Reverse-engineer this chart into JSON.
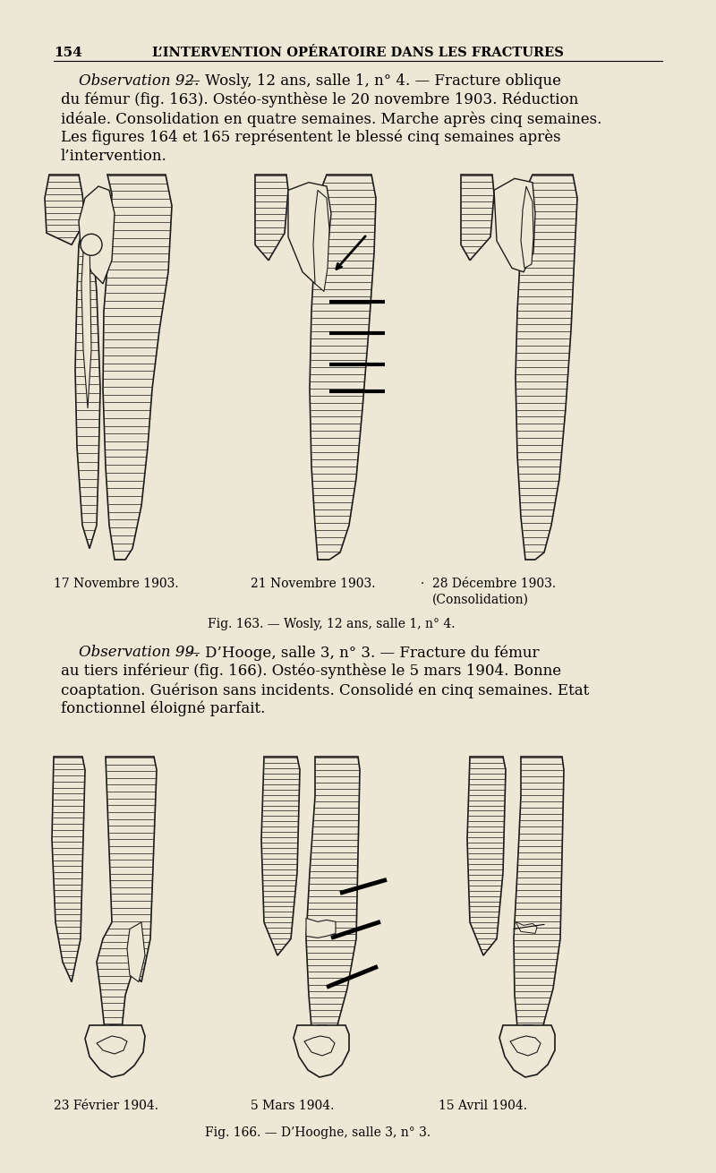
{
  "bg_color": "#ede8d5",
  "page_number": "154",
  "header_title": "L’INTERVENTION OPÉRATOIRE DANS LES FRACTURES",
  "obs92_line1_italic": "Observation 92.",
  "obs92_line1_rest": " — Wosly, 12 ans, salle 1, n° 4. — Fracture oblique",
  "obs92_lines": [
    "du fémur (fig. 163). Ostéo-synthèse le 20 novembre 1903. Réduction",
    "idéale. Consolidation en quatre semaines. Marche après cinq semaines.",
    "Les figures 164 et 165 représentent le blessé cinq semaines après",
    "l’intervention."
  ],
  "labels_fig163_1": "17 Novembre 1903.",
  "labels_fig163_2": "21 Novembre 1903.",
  "labels_fig163_3a": "28 Décembre 1903.",
  "labels_fig163_3b": "(Consolidation)",
  "labels_fig163_dot": "·",
  "caption_fig163": "Fig. 163. — Wosly, 12 ans, salle 1, n° 4.",
  "obs99_line1_italic": "Observation 99.",
  "obs99_line1_rest": " — D’Hooge, salle 3, n° 3. — Fracture du fémur",
  "obs99_lines": [
    "au tiers inférieur (fig. 166). Ostéo-synthèse le 5 mars 1904. Bonne",
    "coaptation. Guérison sans incidents. Consolidé en cinq semaines. Etat",
    "fonctionnel éloigné parfait."
  ],
  "labels_fig166_1": "23 Février 1904.",
  "labels_fig166_2": "5 Mars 1904.",
  "labels_fig166_3": "15 Avril 1904.",
  "caption_fig166": "Fig. 166. — D’Hooghe, salle 3, n° 3.",
  "line_color": "#1a1a1a",
  "hatch_color": "#2a2a2a"
}
